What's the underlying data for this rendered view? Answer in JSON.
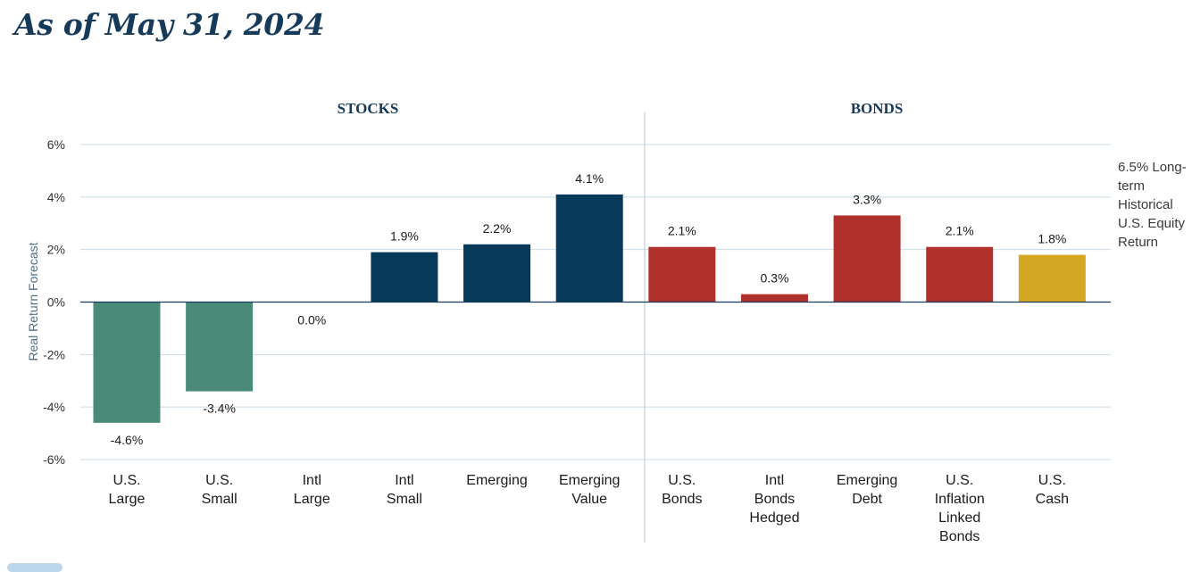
{
  "title": "As of May 31, 2024",
  "chart_data": {
    "type": "bar",
    "ylabel": "Real Return Forecast",
    "ylim": [
      -6,
      6
    ],
    "yticks": [
      "-6%",
      "-4%",
      "-2%",
      "0%",
      "2%",
      "4%",
      "6%"
    ],
    "grid": true,
    "groups": [
      {
        "name": "STOCKS",
        "categories": [
          "U.S. Large",
          "U.S. Small",
          "Intl Large",
          "Intl Small",
          "Emerging",
          "Emerging Value"
        ]
      },
      {
        "name": "BONDS",
        "categories": [
          "U.S. Bonds",
          "Intl Bonds Hedged",
          "Emerging Debt",
          "U.S. Inflation Linked Bonds",
          "U.S. Cash"
        ]
      }
    ],
    "bars": [
      {
        "label_lines": [
          "U.S.",
          "Large"
        ],
        "value": -4.6,
        "value_label": "-4.6%",
        "color": "#4a8a78"
      },
      {
        "label_lines": [
          "U.S.",
          "Small"
        ],
        "value": -3.4,
        "value_label": "-3.4%",
        "color": "#4a8a78"
      },
      {
        "label_lines": [
          "Intl",
          "Large"
        ],
        "value": 0.0,
        "value_label": "0.0%",
        "color": "#4a8a78"
      },
      {
        "label_lines": [
          "Intl",
          "Small"
        ],
        "value": 1.9,
        "value_label": "1.9%",
        "color": "#073a58"
      },
      {
        "label_lines": [
          "Emerging"
        ],
        "value": 2.2,
        "value_label": "2.2%",
        "color": "#073a58"
      },
      {
        "label_lines": [
          "Emerging",
          "Value"
        ],
        "value": 4.1,
        "value_label": "4.1%",
        "color": "#073a58"
      },
      {
        "label_lines": [
          "U.S.",
          "Bonds"
        ],
        "value": 2.1,
        "value_label": "2.1%",
        "color": "#b0302c"
      },
      {
        "label_lines": [
          "Intl",
          "Bonds",
          "Hedged"
        ],
        "value": 0.3,
        "value_label": "0.3%",
        "color": "#b0302c"
      },
      {
        "label_lines": [
          "Emerging",
          "Debt"
        ],
        "value": 3.3,
        "value_label": "3.3%",
        "color": "#b0302c"
      },
      {
        "label_lines": [
          "U.S.",
          "Inflation",
          "Linked",
          "Bonds"
        ],
        "value": 2.1,
        "value_label": "2.1%",
        "color": "#b0302c"
      },
      {
        "label_lines": [
          "U.S.",
          "Cash"
        ],
        "value": 1.8,
        "value_label": "1.8%",
        "color": "#d4a822"
      }
    ],
    "annotation_lines": [
      "6.5% Long-",
      "term",
      "Historical",
      "U.S. Equity",
      "Return"
    ]
  }
}
